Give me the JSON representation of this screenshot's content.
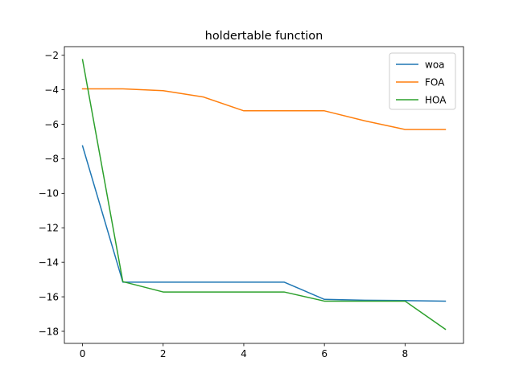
{
  "chart_data": {
    "type": "line",
    "title": "holdertable function",
    "xlabel": "",
    "ylabel": "",
    "x": [
      0,
      1,
      2,
      3,
      4,
      5,
      6,
      7,
      8,
      9
    ],
    "xlim": [
      -0.45,
      9.45
    ],
    "ylim": [
      -18.7,
      -1.5
    ],
    "xticks": [
      0,
      2,
      4,
      6,
      8
    ],
    "yticks": [
      -2,
      -4,
      -6,
      -8,
      -10,
      -12,
      -14,
      -16,
      -18
    ],
    "grid": false,
    "legend_position": "top-right",
    "series": [
      {
        "name": "woa",
        "color": "#1f77b4",
        "values": [
          -7.25,
          -15.15,
          -15.15,
          -15.15,
          -15.15,
          -15.15,
          -16.15,
          -16.2,
          -16.22,
          -16.25
        ]
      },
      {
        "name": "FOA",
        "color": "#ff7f0e",
        "values": [
          -3.95,
          -3.95,
          -4.05,
          -4.42,
          -5.22,
          -5.22,
          -5.22,
          -5.8,
          -6.3,
          -6.3
        ]
      },
      {
        "name": "HOA",
        "color": "#2ca02c",
        "values": [
          -2.25,
          -15.12,
          -15.72,
          -15.72,
          -15.72,
          -15.72,
          -16.25,
          -16.25,
          -16.25,
          -17.88
        ]
      }
    ]
  }
}
